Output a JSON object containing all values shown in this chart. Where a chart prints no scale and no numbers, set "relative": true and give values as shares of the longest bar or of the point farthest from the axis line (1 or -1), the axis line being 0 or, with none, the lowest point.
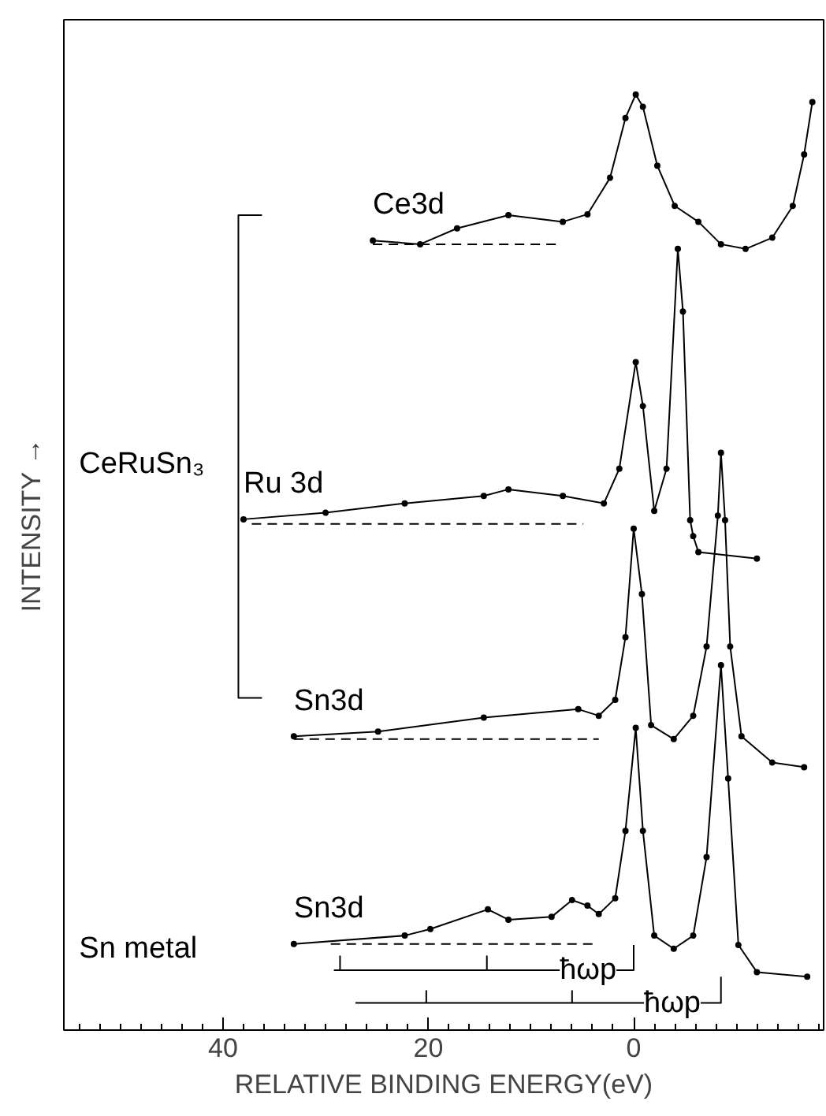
{
  "chart_data": {
    "type": "line",
    "relative": true,
    "xlabel": "RELATIVE BINDING ENERGY(eV)",
    "ylabel": "INTENSITY →",
    "xlim": [
      55.5,
      -18.5
    ],
    "xticks": [
      40,
      20,
      0
    ],
    "grid": false,
    "marker": "circle",
    "line_style": "solid",
    "series": [
      {
        "name": "Ce3d",
        "color": "#000000",
        "x": [
          25.4,
          20.8,
          17.2,
          12.2,
          6.9,
          4.5,
          2.3,
          0.8,
          -0.2,
          -0.9,
          -2.3,
          -4.0,
          -6.3,
          -8.5,
          -10.9,
          -13.5,
          -15.5,
          -16.6,
          -17.4
        ],
        "values": [
          0.844,
          0.84,
          0.857,
          0.871,
          0.864,
          0.872,
          0.911,
          0.975,
          1.0,
          0.987,
          0.924,
          0.881,
          0.864,
          0.84,
          0.835,
          0.847,
          0.881,
          0.936,
          0.992
        ]
      },
      {
        "color": "#000000",
        "line_style": "dashed",
        "marker": "none",
        "x": [
          25.4,
          7.2
        ],
        "values": [
          0.84,
          0.84
        ]
      },
      {
        "name": "Ru 3d",
        "color": "#000000",
        "x": [
          38.0,
          30.0,
          22.3,
          14.6,
          12.2,
          6.9,
          2.9,
          1.4,
          -0.2,
          -0.9,
          -2.0,
          -3.2,
          -4.3,
          -4.8,
          -5.5,
          -5.8,
          -6.3,
          -12.0
        ],
        "values": [
          0.546,
          0.553,
          0.563,
          0.571,
          0.578,
          0.571,
          0.563,
          0.6,
          0.714,
          0.667,
          0.555,
          0.6,
          0.835,
          0.768,
          0.545,
          0.528,
          0.511,
          0.504
        ]
      },
      {
        "color": "#000000",
        "line_style": "dashed",
        "marker": "none",
        "x": [
          37.2,
          4.9
        ],
        "values": [
          0.541,
          0.541
        ]
      },
      {
        "name": "Sn3d",
        "color": "#000000",
        "x": [
          33.1,
          24.9,
          14.6,
          5.4,
          3.4,
          1.8,
          0.8,
          0.0,
          -0.8,
          -1.7,
          -3.9,
          -5.8,
          -7.1,
          -8.2,
          -8.5,
          -8.9,
          -9.4,
          -10.5,
          -13.5,
          -16.6
        ],
        "values": [
          0.314,
          0.319,
          0.334,
          0.343,
          0.336,
          0.353,
          0.42,
          0.536,
          0.466,
          0.326,
          0.311,
          0.336,
          0.41,
          0.55,
          0.617,
          0.545,
          0.41,
          0.314,
          0.286,
          0.281
        ]
      },
      {
        "color": "#000000",
        "line_style": "dashed",
        "marker": "none",
        "x": [
          33.1,
          3.4
        ],
        "values": [
          0.311,
          0.311
        ]
      },
      {
        "name": "Sn3d",
        "color": "#000000",
        "x": [
          33.1,
          22.3,
          19.8,
          14.2,
          12.2,
          8.0,
          6.0,
          4.5,
          3.4,
          1.8,
          0.8,
          -0.2,
          -0.9,
          -2.0,
          -3.9,
          -5.8,
          -7.1,
          -8.5,
          -9.2,
          -10.2,
          -12.0,
          -16.9
        ],
        "values": [
          0.092,
          0.101,
          0.108,
          0.129,
          0.118,
          0.121,
          0.139,
          0.133,
          0.124,
          0.141,
          0.213,
          0.323,
          0.213,
          0.101,
          0.087,
          0.101,
          0.185,
          0.39,
          0.269,
          0.091,
          0.062,
          0.057
        ]
      },
      {
        "color": "#000000",
        "line_style": "dashed",
        "marker": "none",
        "x": [
          29.5,
          3.7
        ],
        "values": [
          0.092,
          0.092
        ]
      },
      {
        "color": "#000000",
        "marker": "none",
        "x": [
          29.2,
          28.6,
          28.6,
          28.6,
          14.3,
          14.3,
          14.3,
          0.0,
          0.0
        ],
        "values": [
          0.064,
          0.064,
          0.079,
          0.064,
          0.064,
          0.079,
          0.064,
          0.064,
          0.091
        ]
      },
      {
        "color": "#000000",
        "marker": "none",
        "x": [
          27.1,
          20.2,
          20.2,
          20.2,
          6.0,
          6.0,
          6.0,
          -8.5,
          -8.5
        ],
        "values": [
          0.029,
          0.029,
          0.042,
          0.029,
          0.029,
          0.042,
          0.029,
          0.029,
          0.057
        ]
      },
      {
        "color": "#000000",
        "marker": "none",
        "x": [
          36.2,
          38.5,
          38.5,
          36.2
        ],
        "values": [
          0.871,
          0.871,
          0.355,
          0.355
        ]
      }
    ],
    "annotations": [
      "CeRuSn₃",
      "Sn metal",
      {
        "text": "ħωp",
        "x": 7.2,
        "y": 0.064
      },
      {
        "text": "ħωp",
        "x": -1.0,
        "y": 0.029
      }
    ]
  }
}
